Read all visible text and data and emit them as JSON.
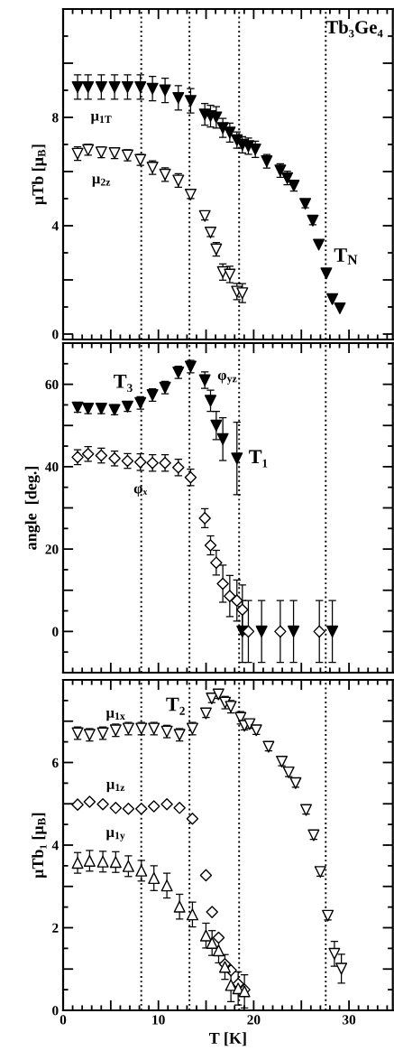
{
  "chart_data": [
    {
      "type": "scatter",
      "ylabel": "μTb [μ$_{B}$]",
      "xlim": [
        0,
        34.6
      ],
      "xticks": [
        0,
        {
          "value": 5,
          "label": null
        },
        10,
        {
          "value": 15,
          "label": null
        },
        20,
        {
          "value": 25,
          "label": null
        },
        30
      ],
      "ylim": [
        -0.2,
        12
      ],
      "yticks": [
        0,
        {
          "value": 2,
          "label": null
        },
        4,
        {
          "value": 6,
          "label": null
        },
        8,
        {
          "value": 10,
          "label": null
        }
      ],
      "tick_labels": "y",
      "grid": false,
      "legend": false,
      "ref_lines": [
        {
          "axis": "x",
          "value": 8.2,
          "line_style": "dotted"
        },
        {
          "axis": "x",
          "value": 13.26,
          "line_style": "dotted"
        },
        {
          "axis": "x",
          "value": 18.47,
          "line_style": "dotted"
        },
        {
          "axis": "x",
          "value": 27.56,
          "line_style": "dotted"
        }
      ],
      "annotations": [
        "Tb₃Ge₄",
        "T$_{N}$"
      ],
      "series": [
        {
          "name": "μ$_{1T}$",
          "color": "#000000",
          "marker": "triangle-down",
          "x": [
            1.52,
            2.62,
            4.01,
            5.4,
            6.76,
            8.11,
            9.38,
            10.7,
            12.09,
            13.38,
            14.87,
            15.47,
            16.07,
            16.76,
            17.49,
            18.24,
            18.81,
            19.44,
            20.17,
            21.37,
            22.79,
            23.52,
            24.21,
            25.41,
            26.2,
            26.83,
            27.62,
            28.25,
            29.04
          ],
          "values": [
            9.12,
            9.12,
            9.12,
            9.12,
            9.12,
            9.12,
            9.06,
            9.0,
            8.72,
            8.61,
            8.11,
            8.05,
            8.0,
            7.61,
            7.44,
            7.16,
            6.99,
            6.94,
            6.82,
            6.38,
            6.04,
            5.76,
            5.48,
            4.81,
            4.19,
            3.3,
            2.24,
            1.29,
            0.95
          ],
          "errors": [
            0.45,
            0.45,
            0.45,
            0.45,
            0.45,
            0.45,
            0.45,
            0.45,
            0.45,
            0.45,
            0.4,
            0.4,
            0.4,
            0.35,
            0.35,
            0.3,
            0.3,
            0.3,
            0.3,
            0.25,
            0.25,
            0.25,
            0.2,
            0.15,
            0.15,
            null,
            null,
            null,
            null
          ]
        },
        {
          "name": "μ$_{2z}$",
          "color": "#ffffff",
          "marker": "triangle-down",
          "x": [
            1.52,
            2.62,
            4.01,
            5.4,
            6.76,
            8.11,
            9.38,
            10.7,
            12.09,
            13.38,
            14.87,
            15.47,
            16.07,
            16.76,
            17.49,
            18.24,
            18.81
          ],
          "values": [
            6.66,
            6.8,
            6.71,
            6.68,
            6.6,
            6.43,
            6.15,
            5.89,
            5.67,
            5.15,
            4.36,
            3.75,
            3.13,
            2.29,
            2.2,
            1.57,
            1.51
          ],
          "errors": [
            0.25,
            0.2,
            0.2,
            0.2,
            0.2,
            0.2,
            0.25,
            0.25,
            0.25,
            0.15,
            0.15,
            0.15,
            0.25,
            0.3,
            0.3,
            0.3,
            0.35
          ]
        }
      ]
    },
    {
      "type": "scatter",
      "ylabel": "angle  [deg.]",
      "xlim": [
        0,
        34.6
      ],
      "xticks": [
        0,
        {
          "value": 5,
          "label": null
        },
        10,
        {
          "value": 15,
          "label": null
        },
        20,
        {
          "value": 25,
          "label": null
        },
        30
      ],
      "ylim": [
        -10,
        70
      ],
      "yticks": [
        {
          "value": -10,
          "label": null
        },
        0,
        {
          "value": 10,
          "label": null
        },
        20,
        {
          "value": 30,
          "label": null
        },
        40,
        {
          "value": 50,
          "label": null
        },
        60
      ],
      "tick_labels": "y",
      "grid": false,
      "legend": false,
      "ref_lines": [
        {
          "axis": "x",
          "value": 8.2,
          "line_style": "dotted"
        },
        {
          "axis": "x",
          "value": 13.26,
          "line_style": "dotted"
        },
        {
          "axis": "x",
          "value": 18.47,
          "line_style": "dotted"
        },
        {
          "axis": "x",
          "value": 27.56,
          "line_style": "dotted"
        }
      ],
      "annotations": [
        "T₃",
        "T₁"
      ],
      "series": [
        {
          "name": "φ$_{yz}$",
          "color": "#000000",
          "marker": "triangle-down",
          "x": [
            1.52,
            2.62,
            4.01,
            5.4,
            6.76,
            8.11,
            9.38,
            10.7,
            12.09,
            13.38,
            14.87,
            15.47,
            16.07,
            16.76,
            18.24,
            18.81,
            20.83,
            24.18,
            28.25
          ],
          "values": [
            54.4,
            54.1,
            54.1,
            53.8,
            54.6,
            55.5,
            57.4,
            59.2,
            62.9,
            64.3,
            61.0,
            56.0,
            50.0,
            46.7,
            42.0,
            0,
            0,
            0,
            0
          ],
          "errors": [
            1.2,
            1.2,
            1.2,
            1.2,
            1.2,
            1.5,
            1.5,
            1.5,
            1.5,
            1.5,
            2.0,
            2.6,
            3.4,
            5.2,
            8.8,
            7.5,
            7.5,
            7.5,
            7.5
          ]
        },
        {
          "name": "φₓ",
          "color": "#ffffff",
          "marker": "diamond",
          "x": [
            1.52,
            2.62,
            4.01,
            5.4,
            6.76,
            8.11,
            9.38,
            10.7,
            12.09,
            13.38,
            14.87,
            15.47,
            16.07,
            16.76,
            17.49,
            18.24,
            18.81,
            19.44,
            22.79,
            26.89
          ],
          "values": [
            42.3,
            43.1,
            42.7,
            42.0,
            41.4,
            41.1,
            40.9,
            40.9,
            39.8,
            37.4,
            27.5,
            20.9,
            16.7,
            11.6,
            8.6,
            7.5,
            5.3,
            0,
            0,
            0
          ],
          "errors": [
            1.8,
            1.8,
            1.8,
            1.8,
            1.8,
            2.0,
            2.0,
            2.0,
            2.0,
            2.0,
            2.3,
            2.3,
            3.0,
            4.5,
            5.0,
            5.0,
            6.0,
            7.5,
            7.5,
            7.5
          ]
        }
      ]
    },
    {
      "type": "scatter",
      "xlabel": "T [K]",
      "ylabel": "μTb₁ [μ$_{B}$]",
      "xlim": [
        0,
        34.6
      ],
      "xticks": [
        0,
        {
          "value": 5,
          "label": null
        },
        10,
        {
          "value": 15,
          "label": null
        },
        20,
        {
          "value": 25,
          "label": null
        },
        30
      ],
      "ylim": [
        0,
        8
      ],
      "yticks": [
        0,
        {
          "value": 1,
          "label": null
        },
        2,
        {
          "value": 3,
          "label": null
        },
        4,
        {
          "value": 5,
          "label": null
        },
        6,
        {
          "value": 7,
          "label": null
        }
      ],
      "grid": false,
      "legend": false,
      "ref_lines": [
        {
          "axis": "x",
          "value": 8.2,
          "line_style": "dotted"
        },
        {
          "axis": "x",
          "value": 13.26,
          "line_style": "dotted"
        },
        {
          "axis": "x",
          "value": 18.47,
          "line_style": "dotted"
        },
        {
          "axis": "x",
          "value": 27.56,
          "line_style": "dotted"
        }
      ],
      "annotations": [
        "T₂"
      ],
      "series": [
        {
          "name": "μ$_{1x}$",
          "color": "#ffffff",
          "marker": "triangle-down",
          "x": [
            1.52,
            2.78,
            4.17,
            5.52,
            6.85,
            8.21,
            9.53,
            10.89,
            12.22,
            13.57,
            14.99,
            15.6,
            16.3,
            17.0,
            17.6,
            18.62,
            19.03,
            19.57,
            20.27,
            21.56,
            22.95,
            23.67,
            24.4,
            25.5,
            26.29,
            26.99,
            27.78,
            28.47,
            29.2
          ],
          "values": [
            6.71,
            6.67,
            6.71,
            6.78,
            6.82,
            6.82,
            6.82,
            6.75,
            6.67,
            6.82,
            7.19,
            7.55,
            7.65,
            7.45,
            7.35,
            7.08,
            6.89,
            6.93,
            6.78,
            6.38,
            6.02,
            5.76,
            5.5,
            4.85,
            4.24,
            3.35,
            2.29,
            1.37,
            1.01
          ],
          "errors": [
            0.15,
            0.15,
            0.15,
            0.15,
            0.15,
            0.15,
            0.15,
            0.15,
            0.15,
            0.15,
            0.1,
            0.1,
            0.1,
            0.15,
            0.15,
            0.15,
            0.1,
            0.1,
            0.1,
            0.1,
            0.1,
            0.1,
            0.1,
            0.1,
            0.1,
            0.1,
            0.1,
            0.3,
            0.35
          ]
        },
        {
          "name": "μ$_{1z}$",
          "color": "#ffffff",
          "marker": "diamond",
          "x": [
            1.52,
            2.78,
            4.17,
            5.52,
            6.85,
            8.21,
            9.53,
            10.89,
            12.22,
            13.57,
            14.99,
            15.63,
            16.32,
            16.98,
            17.61,
            18.37,
            19.03
          ],
          "values": [
            4.98,
            5.05,
            4.99,
            4.9,
            4.88,
            4.88,
            4.94,
            4.99,
            4.9,
            4.64,
            3.27,
            2.38,
            1.76,
            1.12,
            0.97,
            0.64,
            0.5
          ]
        },
        {
          "name": "μ$_{1y}$",
          "color": "#ffffff",
          "marker": "triangle",
          "x": [
            1.52,
            2.78,
            4.17,
            5.52,
            6.85,
            8.21,
            9.53,
            10.89,
            12.22,
            13.57,
            14.99,
            15.63,
            16.32,
            16.98,
            17.61,
            18.37,
            19.03
          ],
          "values": [
            3.57,
            3.62,
            3.6,
            3.59,
            3.49,
            3.38,
            3.2,
            3.02,
            2.51,
            2.32,
            1.81,
            1.63,
            1.45,
            1.05,
            0.61,
            0.53,
            0.46
          ],
          "errors": [
            0.25,
            0.25,
            0.25,
            0.25,
            0.25,
            0.25,
            0.3,
            0.3,
            0.3,
            0.3,
            0.3,
            0.3,
            0.3,
            0.3,
            0.4,
            0.4,
            0.4
          ]
        }
      ]
    }
  ]
}
